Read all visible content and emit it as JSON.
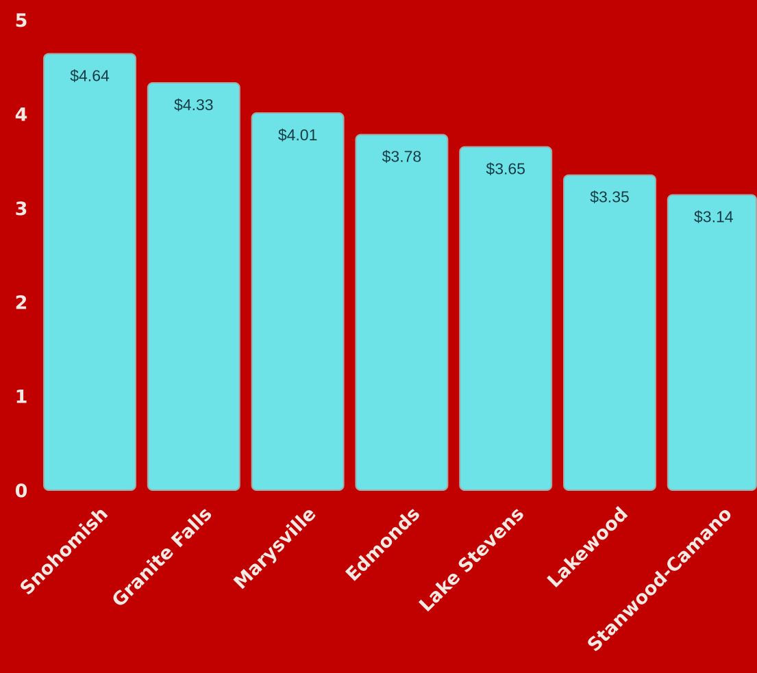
{
  "chart_data": {
    "type": "bar",
    "categories": [
      "Snohomish",
      "Granite Falls",
      "Marysville",
      "Edmonds",
      "Lake Stevens",
      "Lakewood",
      "Stanwood-Camano"
    ],
    "values": [
      4.64,
      4.33,
      4.01,
      3.78,
      3.65,
      3.35,
      3.14
    ],
    "data_labels": [
      "$4.64",
      "$4.33",
      "$4.01",
      "$3.78",
      "$3.65",
      "$3.35",
      "$3.14"
    ],
    "yticks": [
      0,
      1,
      2,
      3,
      4,
      5
    ],
    "ytick_labels": [
      "0",
      "1",
      "2",
      "3",
      "4",
      "5"
    ],
    "ylim": [
      0,
      5
    ],
    "title": "",
    "xlabel": "",
    "ylabel": "",
    "grid": false,
    "legend": "none",
    "colors": {
      "background": "#c10000",
      "bar_fill": "#6ee3e7",
      "bar_edge": "#a9a6a3",
      "axis_text": "#f6e9e4",
      "data_label_text": "#123c44"
    }
  }
}
